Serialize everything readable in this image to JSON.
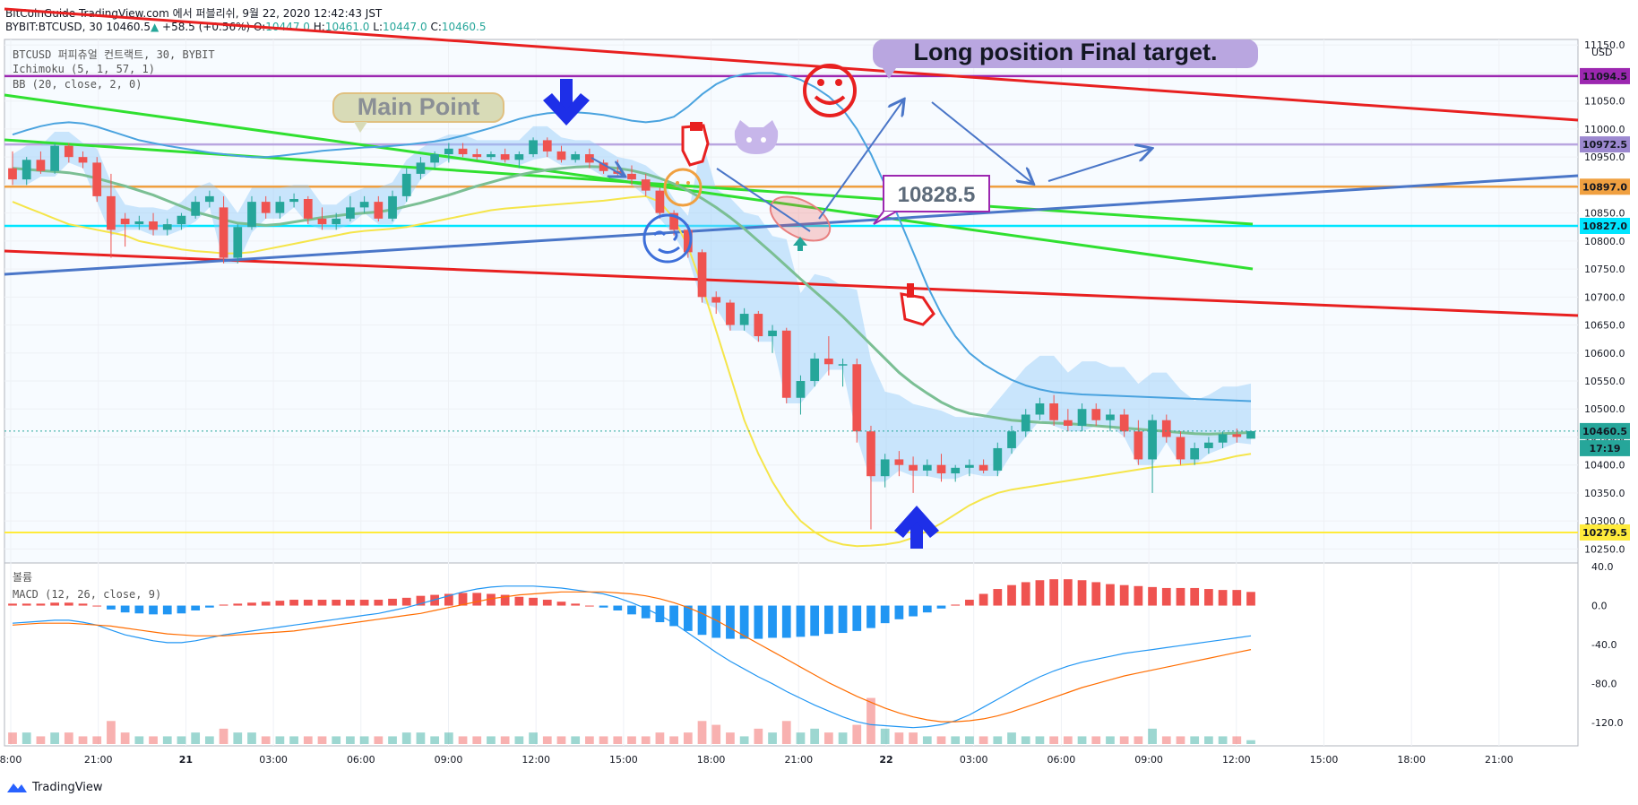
{
  "header": {
    "line1": "BitCoinGuide TradingView.com 에서 퍼블리쉬, 9월 22, 2020 12:42:43 JST",
    "symbol": "BYBIT:BTCUSD, 30",
    "last": "10460.5",
    "change": "+58.5 (+0.56%)",
    "o_label": "O:",
    "o": "10447.0",
    "h_label": "H:",
    "h": "10461.0",
    "l_label": "L:",
    "l": "10447.0",
    "c_label": "C:",
    "c": "10460.5"
  },
  "legend": {
    "title": "BTCUSD 퍼피츄얼 컨트랙트, 30, BYBIT",
    "ichimoku": "Ichimoku (5, 1, 57, 1)",
    "bb": "BB (20, close, 2, 0)",
    "volume": "볼륨",
    "macd": "MACD (12, 26, close, 9)"
  },
  "annotations": {
    "main_point": "Main Point",
    "final_target": "Long position Final target.",
    "price_callout": "10828.5"
  },
  "footer": {
    "brand": "TradingView"
  },
  "colors": {
    "up": "#26a69a",
    "down": "#ef5350",
    "bb_mid": "#7bbf94",
    "bb_band": "#4aa3df",
    "bb_lower": "#f5e54a",
    "cloud": "#90caf9",
    "red_line": "#e82020",
    "green_line": "#30e030",
    "blue_line": "#4a76c8",
    "purple": "#9c27b0",
    "orange": "#f0a040",
    "cyan": "#00e5ff",
    "yellow": "#ffeb3b",
    "macd": "#2196f3",
    "signal": "#ff6d00"
  },
  "chart_data": {
    "type": "candlestick",
    "ylim": [
      10225,
      11160
    ],
    "y_ticks": [
      10250,
      10300,
      10350,
      10400,
      10450,
      10500,
      10550,
      10600,
      10650,
      10700,
      10750,
      10800,
      10850,
      10900,
      10950,
      11000,
      11050,
      11100,
      11150
    ],
    "y_currency": "USD",
    "x_ticks": [
      "8:00",
      "21:00",
      "21",
      "03:00",
      "06:00",
      "09:00",
      "12:00",
      "15:00",
      "18:00",
      "21:00",
      "22",
      "03:00",
      "06:00",
      "09:00",
      "12:00",
      "15:00",
      "18:00",
      "21:00"
    ],
    "price_labels": [
      {
        "value": "11094.5",
        "color": "#9c27b0"
      },
      {
        "value": "10972.5",
        "color": "#9c88d0"
      },
      {
        "value": "10897.0",
        "color": "#f0a040"
      },
      {
        "value": "10827.0",
        "color": "#00e5ff"
      },
      {
        "value": "10460.5",
        "color": "#26a69a"
      },
      {
        "value": "17:19",
        "color": "#26a69a"
      },
      {
        "value": "10279.5",
        "color": "#ffeb3b"
      }
    ],
    "horizontal_levels": [
      11094.5,
      10972.5,
      10897.0,
      10827.0,
      10279.5
    ],
    "candles": [
      [
        10930,
        10960,
        10900,
        10910
      ],
      [
        10910,
        10950,
        10900,
        10945
      ],
      [
        10945,
        10960,
        10920,
        10925
      ],
      [
        10925,
        10975,
        10920,
        10970
      ],
      [
        10970,
        10975,
        10940,
        10950
      ],
      [
        10950,
        10960,
        10930,
        10940
      ],
      [
        10940,
        10950,
        10870,
        10880
      ],
      [
        10880,
        10920,
        10770,
        10820
      ],
      [
        10840,
        10850,
        10790,
        10830
      ],
      [
        10830,
        10845,
        10820,
        10835
      ],
      [
        10835,
        10850,
        10810,
        10820
      ],
      [
        10820,
        10840,
        10810,
        10830
      ],
      [
        10830,
        10850,
        10820,
        10845
      ],
      [
        10845,
        10880,
        10840,
        10870
      ],
      [
        10870,
        10890,
        10860,
        10880
      ],
      [
        10860,
        10880,
        10760,
        10770
      ],
      [
        10770,
        10830,
        10760,
        10825
      ],
      [
        10825,
        10880,
        10820,
        10870
      ],
      [
        10870,
        10880,
        10840,
        10850
      ],
      [
        10850,
        10880,
        10840,
        10870
      ],
      [
        10870,
        10885,
        10860,
        10875
      ],
      [
        10875,
        10880,
        10830,
        10840
      ],
      [
        10840,
        10860,
        10820,
        10830
      ],
      [
        10830,
        10850,
        10820,
        10840
      ],
      [
        10840,
        10880,
        10835,
        10860
      ],
      [
        10860,
        10880,
        10850,
        10870
      ],
      [
        10870,
        10880,
        10835,
        10840
      ],
      [
        10840,
        10890,
        10835,
        10880
      ],
      [
        10880,
        10930,
        10870,
        10920
      ],
      [
        10920,
        10950,
        10910,
        10940
      ],
      [
        10940,
        10960,
        10930,
        10955
      ],
      [
        10955,
        10975,
        10940,
        10965
      ],
      [
        10965,
        10975,
        10950,
        10955
      ],
      [
        10955,
        10965,
        10945,
        10950
      ],
      [
        10950,
        10960,
        10945,
        10955
      ],
      [
        10955,
        10965,
        10940,
        10945
      ],
      [
        10945,
        10960,
        10930,
        10955
      ],
      [
        10955,
        10985,
        10950,
        10980
      ],
      [
        10980,
        10985,
        10950,
        10960
      ],
      [
        10960,
        10970,
        10940,
        10945
      ],
      [
        10945,
        10960,
        10940,
        10955
      ],
      [
        10955,
        10965,
        10930,
        10940
      ],
      [
        10940,
        10945,
        10920,
        10925
      ],
      [
        10925,
        10945,
        10915,
        10920
      ],
      [
        10920,
        10935,
        10900,
        10910
      ],
      [
        10910,
        10920,
        10880,
        10890
      ],
      [
        10890,
        10895,
        10840,
        10850
      ],
      [
        10850,
        10855,
        10810,
        10820
      ],
      [
        10820,
        10830,
        10770,
        10780
      ],
      [
        10780,
        10785,
        10690,
        10700
      ],
      [
        10700,
        10710,
        10670,
        10690
      ],
      [
        10690,
        10695,
        10640,
        10650
      ],
      [
        10650,
        10680,
        10640,
        10670
      ],
      [
        10670,
        10675,
        10620,
        10630
      ],
      [
        10630,
        10650,
        10600,
        10640
      ],
      [
        10640,
        10645,
        10510,
        10520
      ],
      [
        10520,
        10560,
        10490,
        10550
      ],
      [
        10550,
        10600,
        10540,
        10590
      ],
      [
        10590,
        10630,
        10560,
        10580
      ],
      [
        10580,
        10590,
        10540,
        10580
      ],
      [
        10580,
        10590,
        10440,
        10460
      ],
      [
        10460,
        10470,
        10285,
        10380
      ],
      [
        10380,
        10420,
        10360,
        10410
      ],
      [
        10410,
        10425,
        10380,
        10400
      ],
      [
        10400,
        10415,
        10350,
        10390
      ],
      [
        10390,
        10410,
        10380,
        10400
      ],
      [
        10400,
        10420,
        10370,
        10385
      ],
      [
        10385,
        10400,
        10370,
        10395
      ],
      [
        10395,
        10410,
        10380,
        10400
      ],
      [
        10400,
        10410,
        10385,
        10390
      ],
      [
        10390,
        10440,
        10380,
        10430
      ],
      [
        10430,
        10470,
        10420,
        10460
      ],
      [
        10460,
        10500,
        10450,
        10490
      ],
      [
        10490,
        10520,
        10480,
        10510
      ],
      [
        10510,
        10525,
        10470,
        10480
      ],
      [
        10480,
        10500,
        10460,
        10470
      ],
      [
        10470,
        10510,
        10460,
        10500
      ],
      [
        10500,
        10510,
        10470,
        10480
      ],
      [
        10480,
        10500,
        10460,
        10490
      ],
      [
        10490,
        10500,
        10450,
        10460
      ],
      [
        10460,
        10480,
        10400,
        10410
      ],
      [
        10410,
        10490,
        10350,
        10480
      ],
      [
        10480,
        10490,
        10440,
        10450
      ],
      [
        10450,
        10460,
        10400,
        10410
      ],
      [
        10410,
        10440,
        10400,
        10430
      ],
      [
        10430,
        10450,
        10420,
        10440
      ],
      [
        10440,
        10460,
        10430,
        10455
      ],
      [
        10455,
        10465,
        10440,
        10450
      ],
      [
        10447,
        10461,
        10447,
        10460.5
      ]
    ],
    "bb_mid": [
      10930,
      10928,
      10926,
      10924,
      10922,
      10918,
      10912,
      10905,
      10898,
      10890,
      10882,
      10872,
      10862,
      10852,
      10845,
      10838,
      10832,
      10830,
      10828,
      10830,
      10834,
      10838,
      10842,
      10845,
      10848,
      10850,
      10852,
      10856,
      10862,
      10868,
      10875,
      10882,
      10890,
      10898,
      10905,
      10912,
      10918,
      10923,
      10927,
      10930,
      10932,
      10933,
      10932,
      10930,
      10926,
      10920,
      10912,
      10902,
      10890,
      10876,
      10860,
      10842,
      10822,
      10800,
      10778,
      10755,
      10732,
      10710,
      10688,
      10665,
      10640,
      10615,
      10590,
      10565,
      10545,
      10528,
      10512,
      10500,
      10492,
      10488,
      10484,
      10480,
      10478,
      10476,
      10475,
      10474,
      10472,
      10470,
      10468,
      10466,
      10464,
      10462,
      10460,
      10458,
      10456,
      10455,
      10456,
      10457,
      10458
    ],
    "bb_upper": [
      10990,
      10998,
      11005,
      11010,
      11012,
      11010,
      11004,
      10996,
      10988,
      10980,
      10975,
      10970,
      10966,
      10962,
      10958,
      10955,
      10952,
      10950,
      10950,
      10952,
      10955,
      10958,
      10961,
      10963,
      10965,
      10967,
      10968,
      10970,
      10972,
      10975,
      10978,
      10982,
      10988,
      10995,
      11002,
      11010,
      11018,
      11024,
      11028,
      11030,
      11030,
      11028,
      11025,
      11020,
      11015,
      11012,
      11015,
      11022,
      11040,
      11062,
      11080,
      11092,
      11098,
      11100,
      11100,
      11096,
      11088,
      11075,
      11058,
      11035,
      11000,
      10955,
      10900,
      10840,
      10780,
      10720,
      10670,
      10630,
      10600,
      10580,
      10565,
      10552,
      10542,
      10535,
      10530,
      10528,
      10526,
      10525,
      10524,
      10523,
      10522,
      10521,
      10520,
      10519,
      10518,
      10517,
      10516,
      10515,
      10514
    ],
    "bb_lower": [
      10870,
      10860,
      10850,
      10840,
      10830,
      10825,
      10820,
      10815,
      10810,
      10800,
      10795,
      10790,
      10785,
      10782,
      10780,
      10778,
      10778,
      10780,
      10785,
      10790,
      10795,
      10800,
      10805,
      10810,
      10815,
      10818,
      10820,
      10822,
      10825,
      10830,
      10835,
      10840,
      10845,
      10850,
      10855,
      10858,
      10860,
      10862,
      10864,
      10866,
      10868,
      10870,
      10872,
      10875,
      10878,
      10880,
      10870,
      10840,
      10790,
      10720,
      10640,
      10560,
      10480,
      10420,
      10370,
      10330,
      10300,
      10280,
      10265,
      10258,
      10255,
      10256,
      10258,
      10262,
      10270,
      10282,
      10296,
      10312,
      10328,
      10340,
      10350,
      10356,
      10360,
      10364,
      10368,
      10372,
      10376,
      10380,
      10384,
      10388,
      10392,
      10396,
      10398,
      10400,
      10402,
      10405,
      10410,
      10416,
      10420
    ],
    "macd": [
      -18,
      -17,
      -16,
      -15,
      -15,
      -17,
      -20,
      -25,
      -30,
      -33,
      -36,
      -38,
      -38,
      -36,
      -33,
      -30,
      -28,
      -26,
      -24,
      -22,
      -20,
      -18,
      -16,
      -14,
      -12,
      -10,
      -8,
      -5,
      -2,
      2,
      6,
      10,
      14,
      17,
      19,
      20,
      20,
      20,
      19,
      18,
      16,
      14,
      12,
      8,
      3,
      -3,
      -10,
      -18,
      -28,
      -38,
      -48,
      -57,
      -65,
      -73,
      -80,
      -88,
      -95,
      -102,
      -108,
      -114,
      -119,
      -122,
      -123,
      -124,
      -125,
      -124,
      -122,
      -118,
      -112,
      -104,
      -96,
      -88,
      -80,
      -73,
      -67,
      -62,
      -58,
      -55,
      -52,
      -49,
      -47,
      -45,
      -43,
      -41,
      -39,
      -37,
      -35,
      -33,
      -31
    ],
    "signal": [
      -20,
      -19,
      -18,
      -18,
      -18,
      -19,
      -20,
      -21,
      -23,
      -25,
      -27,
      -29,
      -30,
      -31,
      -31,
      -31,
      -30,
      -29,
      -28,
      -27,
      -26,
      -24,
      -22,
      -20,
      -18,
      -16,
      -14,
      -12,
      -10,
      -8,
      -5,
      -2,
      1,
      4,
      7,
      9,
      11,
      12,
      13,
      14,
      14,
      14,
      14,
      13,
      12,
      10,
      7,
      3,
      -2,
      -8,
      -15,
      -23,
      -31,
      -39,
      -47,
      -55,
      -63,
      -71,
      -79,
      -86,
      -93,
      -99,
      -105,
      -110,
      -114,
      -117,
      -119,
      -119,
      -118,
      -116,
      -113,
      -109,
      -104,
      -99,
      -94,
      -89,
      -84,
      -80,
      -76,
      -72,
      -69,
      -66,
      -63,
      -60,
      -57,
      -54,
      -51,
      -48,
      -45
    ],
    "histogram": [
      2,
      2,
      2,
      3,
      3,
      2,
      0,
      -4,
      -7,
      -8,
      -9,
      -9,
      -8,
      -5,
      -2,
      1,
      2,
      3,
      4,
      5,
      6,
      6,
      6,
      6,
      6,
      6,
      6,
      7,
      8,
      10,
      11,
      12,
      13,
      13,
      12,
      11,
      9,
      8,
      6,
      4,
      2,
      0,
      -2,
      -5,
      -9,
      -13,
      -17,
      -21,
      -26,
      -30,
      -33,
      -34,
      -34,
      -34,
      -33,
      -33,
      -32,
      -31,
      -29,
      -28,
      -26,
      -23,
      -18,
      -14,
      -11,
      -7,
      -3,
      1,
      6,
      12,
      17,
      21,
      24,
      26,
      27,
      27,
      26,
      24,
      22,
      21,
      20,
      19,
      18,
      18,
      18,
      17,
      16,
      16,
      14
    ],
    "volume": [
      3,
      3,
      2,
      3,
      3,
      2,
      2,
      6,
      3,
      2,
      2,
      2,
      2,
      3,
      2,
      4,
      3,
      3,
      2,
      2,
      2,
      2,
      2,
      2,
      2,
      2,
      2,
      2,
      3,
      3,
      2,
      3,
      2,
      2,
      2,
      2,
      2,
      3,
      2,
      2,
      2,
      2,
      2,
      2,
      2,
      2,
      3,
      2,
      3,
      6,
      5,
      3,
      2,
      4,
      3,
      6,
      3,
      4,
      3,
      3,
      5,
      12,
      4,
      3,
      3,
      2,
      2,
      2,
      2,
      2,
      2,
      3,
      2,
      2,
      2,
      2,
      2,
      2,
      2,
      2,
      2,
      4,
      2,
      2,
      2,
      2,
      2,
      2,
      1
    ]
  }
}
